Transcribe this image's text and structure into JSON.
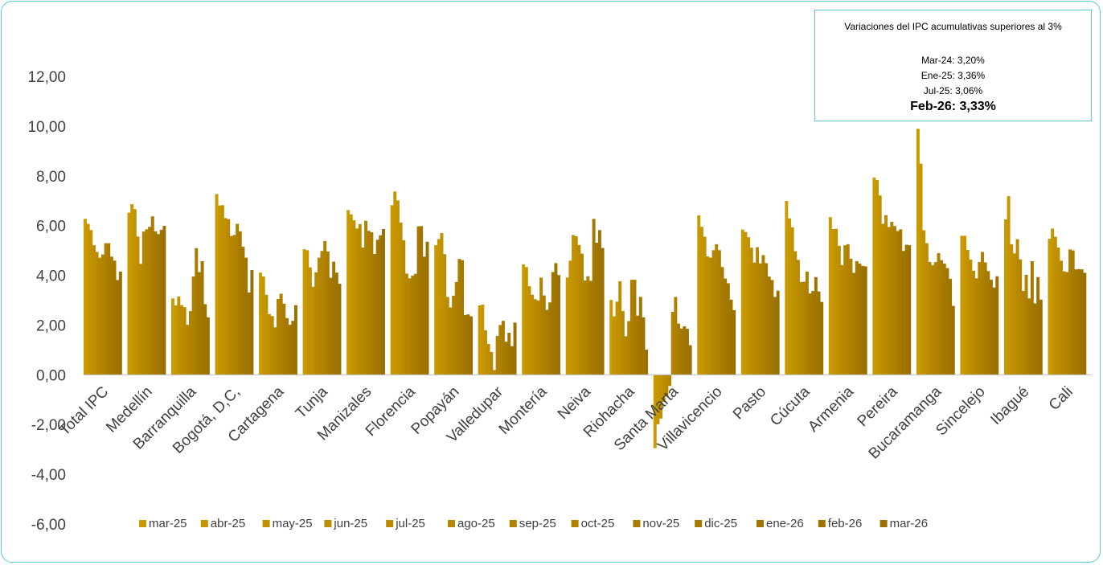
{
  "note": {
    "title": "Variaciones del IPC acumulativas superiores al 3%",
    "lines": [
      "Mar-24: 3,20%",
      "Ene-25: 3,36%",
      "Jul-25: 3,06%"
    ],
    "highlight": "Feb-26: 3,33%"
  },
  "chart_data": {
    "type": "bar",
    "title": "",
    "xlabel": "",
    "ylabel": "",
    "ylim": [
      -6,
      12
    ],
    "y_ticks": [
      "12,00",
      "10,00",
      "8,00",
      "6,00",
      "4,00",
      "2,00",
      "0,00",
      "-2,00",
      "-4,00",
      "-6,00"
    ],
    "y_tick_values": [
      12,
      10,
      8,
      6,
      4,
      2,
      0,
      -2,
      -4,
      -6
    ],
    "grid": false,
    "legend_position": "bottom",
    "colors": [
      "#c99b00",
      "#c59600",
      "#c19200",
      "#bd8e00",
      "#b98a00",
      "#b58700",
      "#b18300",
      "#ad8000",
      "#a97c00",
      "#a57900",
      "#a17600",
      "#9e7400",
      "#9a7100"
    ],
    "categories": [
      "Total IPC",
      "Medellín",
      "Barranquilla",
      "Bogotá, D,C,",
      "Cartagena",
      "Tunja",
      "Manizales",
      "Florencia",
      "Popayán",
      "Valledupar",
      "Montería",
      "Neiva",
      "Riohacha",
      "Santa Marta",
      "Villavicencio",
      "Pasto",
      "Cúcuta",
      "Armenia",
      "Pereira",
      "Bucaramanga",
      "Sincelejo",
      "Ibagué",
      "Cali"
    ],
    "series": [
      {
        "name": "mar-25",
        "values": [
          6.27,
          6.52,
          3.07,
          7.27,
          4.11,
          5.05,
          6.62,
          6.82,
          5.21,
          2.79,
          4.44,
          3.91,
          3.01,
          -2.95,
          6.41,
          5.84,
          6.99,
          6.34,
          7.93,
          9.89,
          5.59,
          6.25,
          5.47
        ]
      },
      {
        "name": "abr-25",
        "values": [
          6.07,
          6.86,
          2.79,
          6.81,
          3.95,
          5.01,
          6.45,
          7.37,
          5.46,
          2.82,
          4.33,
          4.59,
          2.35,
          -1.99,
          5.95,
          5.74,
          6.29,
          5.86,
          7.83,
          8.49,
          5.59,
          7.18,
          5.88
        ]
      },
      {
        "name": "may-25",
        "values": [
          5.82,
          6.66,
          3.15,
          6.82,
          3.22,
          4.32,
          6.21,
          7.01,
          5.7,
          1.79,
          3.56,
          5.62,
          2.94,
          -1.76,
          5.55,
          5.53,
          5.93,
          5.87,
          7.21,
          5.81,
          5.02,
          5.25,
          5.55
        ]
      },
      {
        "name": "jun-25",
        "values": [
          5.21,
          5.56,
          2.8,
          6.3,
          2.44,
          3.54,
          5.88,
          6.12,
          4.85,
          1.24,
          3.22,
          5.57,
          3.76,
          -1.09,
          4.76,
          5.11,
          4.97,
          5.19,
          6.07,
          5.29,
          4.63,
          4.88,
          5.12
        ]
      },
      {
        "name": "jul-25",
        "values": [
          4.94,
          4.46,
          2.72,
          6.26,
          2.36,
          4.12,
          6.06,
          5.41,
          3.13,
          0.92,
          3.04,
          5.22,
          2.56,
          -0.87,
          4.71,
          4.51,
          4.62,
          4.41,
          6.42,
          4.54,
          4.18,
          5.45,
          4.59
        ]
      },
      {
        "name": "ago-25",
        "values": [
          4.71,
          5.76,
          2.01,
          5.58,
          1.91,
          4.71,
          5.12,
          4.07,
          2.71,
          0.19,
          2.99,
          4.87,
          1.55,
          -0.45,
          5.01,
          5.13,
          3.73,
          5.21,
          5.94,
          4.41,
          3.88,
          4.64,
          4.16
        ]
      },
      {
        "name": "sep-25",
        "values": [
          4.84,
          5.85,
          2.56,
          5.62,
          3.05,
          4.98,
          6.19,
          3.88,
          3.18,
          1.56,
          3.91,
          3.79,
          2.16,
          2.53,
          5.25,
          4.48,
          3.74,
          5.25,
          6.15,
          4.53,
          4.54,
          3.37,
          4.13
        ]
      },
      {
        "name": "oct-25",
        "values": [
          5.29,
          5.95,
          3.95,
          6.07,
          3.26,
          5.38,
          5.79,
          3.99,
          3.73,
          2.0,
          3.19,
          3.96,
          3.82,
          3.13,
          5.01,
          4.81,
          4.15,
          4.67,
          5.98,
          4.89,
          4.94,
          4.02,
          5.04
        ]
      },
      {
        "name": "nov-25",
        "values": [
          5.29,
          6.37,
          5.09,
          5.77,
          2.86,
          4.96,
          5.73,
          4.06,
          4.66,
          2.17,
          2.61,
          3.78,
          3.82,
          2.06,
          4.33,
          4.49,
          3.27,
          4.1,
          5.78,
          4.61,
          4.52,
          3.07,
          5.0
        ]
      },
      {
        "name": "dic-25",
        "values": [
          4.75,
          5.77,
          4.13,
          5.15,
          2.28,
          3.9,
          4.86,
          5.97,
          4.61,
          1.33,
          2.91,
          6.27,
          2.38,
          1.86,
          3.87,
          3.95,
          3.37,
          4.57,
          5.85,
          4.47,
          4.17,
          4.57,
          4.24
        ]
      },
      {
        "name": "ene-26",
        "values": [
          4.59,
          5.66,
          4.57,
          4.71,
          2.01,
          4.55,
          5.43,
          5.98,
          2.4,
          1.69,
          4.13,
          5.31,
          3.13,
          1.95,
          3.68,
          3.81,
          3.93,
          4.47,
          4.98,
          4.29,
          3.82,
          2.87,
          4.25
        ]
      },
      {
        "name": "feb-26",
        "values": [
          3.81,
          5.83,
          2.84,
          3.31,
          2.17,
          4.11,
          5.61,
          4.75,
          2.43,
          1.15,
          4.49,
          5.82,
          2.31,
          1.85,
          3.02,
          3.13,
          3.35,
          4.38,
          5.23,
          3.86,
          3.51,
          3.93,
          4.24
        ]
      },
      {
        "name": "mar-26",
        "values": [
          4.15,
          5.99,
          2.31,
          4.21,
          2.8,
          3.66,
          5.86,
          5.35,
          2.35,
          2.1,
          4.01,
          5.1,
          1.01,
          1.19,
          2.6,
          3.38,
          2.93,
          4.36,
          5.21,
          2.77,
          3.96,
          3.02,
          4.1
        ]
      }
    ]
  }
}
